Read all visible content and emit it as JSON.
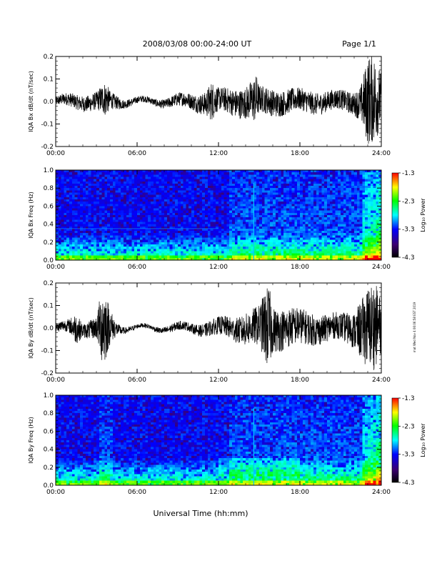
{
  "header": {
    "title": "2008/03/08  00:00-24:00 UT",
    "page": "Page 1/1"
  },
  "footer": {
    "xlabel": "Universal Time (hh:mm)"
  },
  "side_note": "mat Wed Nov 4 06:06:58 EST 2019",
  "colorbar": {
    "label": "Log₁₀ Power",
    "ticks": [
      "-1.3",
      "-2.3",
      "-3.3",
      "-4.3"
    ],
    "colors": [
      "#ff0000",
      "#ffff00",
      "#00ff00",
      "#00ffff",
      "#0000ff",
      "#3b0070",
      "#000000"
    ]
  },
  "chart_data": [
    {
      "type": "line",
      "title": "",
      "ylabel": "IQA Bx dB/dt (nT/sec)",
      "xlabel": "",
      "xlim": [
        "00:00",
        "24:00"
      ],
      "ylim": [
        -0.2,
        0.2
      ],
      "xticks": [
        "00:00",
        "06:00",
        "12:00",
        "18:00",
        "24:00"
      ],
      "yticks": [
        "0.2",
        "0.1",
        "0.0",
        "-0.1",
        "-0.2"
      ],
      "envelope_hours": [
        0,
        1,
        2,
        3,
        3.7,
        4,
        5,
        6,
        7,
        8,
        9,
        10,
        11,
        11.5,
        12,
        13,
        14,
        14.8,
        15,
        16,
        17,
        18,
        19,
        20,
        21,
        22,
        22.5,
        23,
        23.5,
        24
      ],
      "envelope_amplitude": [
        0.02,
        0.03,
        0.035,
        0.04,
        0.08,
        0.04,
        0.02,
        0.015,
        0.015,
        0.02,
        0.03,
        0.035,
        0.05,
        0.09,
        0.05,
        0.06,
        0.07,
        0.11,
        0.06,
        0.06,
        0.055,
        0.05,
        0.05,
        0.045,
        0.045,
        0.05,
        0.08,
        0.2,
        0.2,
        0.12
      ]
    },
    {
      "type": "heatmap",
      "title": "",
      "ylabel": "IQA Bx Freq (Hz)",
      "xlim": [
        "00:00",
        "24:00"
      ],
      "ylim": [
        0.0,
        1.0
      ],
      "xticks": [
        "00:00",
        "06:00",
        "12:00",
        "18:00",
        "24:00"
      ],
      "yticks": [
        "1.0",
        "0.8",
        "0.6",
        "0.4",
        "0.2",
        "0.0"
      ],
      "zlim": [
        -4.3,
        -1.3
      ],
      "zlabel": "Log₁₀ Power"
    },
    {
      "type": "line",
      "title": "",
      "ylabel": "IQA By dB/dt (nT/sec)",
      "xlabel": "",
      "xlim": [
        "00:00",
        "24:00"
      ],
      "ylim": [
        -0.2,
        0.2
      ],
      "xticks": [
        "00:00",
        "06:00",
        "12:00",
        "18:00",
        "24:00"
      ],
      "yticks": [
        "0.2",
        "0.1",
        "0.0",
        "-0.1",
        "-0.2"
      ],
      "envelope_hours": [
        0,
        1,
        1.5,
        2,
        3,
        3.5,
        4,
        4.5,
        5,
        6,
        7,
        8,
        9,
        10,
        11,
        12,
        13,
        14,
        15,
        15.7,
        16,
        17,
        18,
        19,
        20,
        21,
        22,
        23,
        23.5,
        24
      ],
      "envelope_amplitude": [
        0.02,
        0.03,
        0.07,
        0.03,
        0.05,
        0.2,
        0.08,
        0.03,
        0.015,
        0.01,
        0.01,
        0.015,
        0.02,
        0.02,
        0.03,
        0.04,
        0.05,
        0.07,
        0.09,
        0.2,
        0.1,
        0.09,
        0.08,
        0.07,
        0.06,
        0.06,
        0.08,
        0.18,
        0.2,
        0.12
      ]
    },
    {
      "type": "heatmap",
      "title": "",
      "ylabel": "IQA By Freq (Hz)",
      "xlim": [
        "00:00",
        "24:00"
      ],
      "ylim": [
        0.0,
        1.0
      ],
      "xticks": [
        "00:00",
        "06:00",
        "12:00",
        "18:00",
        "24:00"
      ],
      "yticks": [
        "1.0",
        "0.8",
        "0.6",
        "0.4",
        "0.2",
        "0.0"
      ],
      "zlim": [
        -4.3,
        -1.3
      ],
      "zlabel": "Log₁₀ Power"
    }
  ]
}
